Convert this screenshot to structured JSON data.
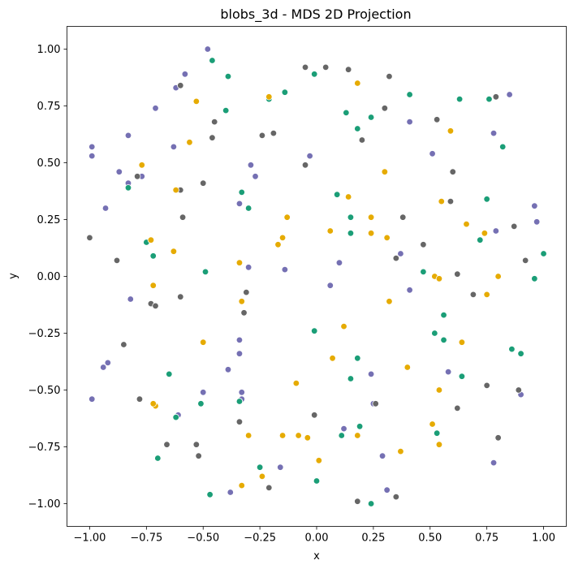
{
  "chart_data": {
    "type": "scatter",
    "title": "blobs_3d - MDS 2D Projection",
    "xlabel": "x",
    "ylabel": "y",
    "xlim": [
      -1.1,
      1.1
    ],
    "ylim": [
      -1.1,
      1.1
    ],
    "x_ticks": [
      -1.0,
      -0.75,
      -0.5,
      -0.25,
      0.0,
      0.25,
      0.5,
      0.75,
      1.0
    ],
    "x_tick_labels": [
      "−1.00",
      "−0.75",
      "−0.50",
      "−0.25",
      "0.00",
      "0.25",
      "0.50",
      "0.75",
      "1.00"
    ],
    "y_ticks": [
      -1.0,
      -0.75,
      -0.5,
      -0.25,
      0.0,
      0.25,
      0.5,
      0.75,
      1.0
    ],
    "y_tick_labels": [
      "−1.00",
      "−0.75",
      "−0.50",
      "−0.25",
      "0.00",
      "0.25",
      "0.50",
      "0.75",
      "1.00"
    ],
    "grid": false,
    "legend": "none",
    "colors": {
      "purple": "#7570b3",
      "green": "#1b9e77",
      "gray": "#666666",
      "orange": "#e6ab02"
    },
    "series": [
      {
        "color": "#7570b3",
        "points": [
          [
            -0.48,
            1.0
          ],
          [
            -0.58,
            0.89
          ],
          [
            -0.62,
            0.83
          ],
          [
            -0.71,
            0.74
          ],
          [
            -0.83,
            0.62
          ],
          [
            -0.63,
            0.57
          ],
          [
            -0.99,
            0.57
          ],
          [
            -0.99,
            0.53
          ],
          [
            -0.87,
            0.46
          ],
          [
            -0.77,
            0.44
          ],
          [
            -0.83,
            0.41
          ],
          [
            -0.93,
            0.3
          ],
          [
            -0.29,
            0.49
          ],
          [
            -0.27,
            0.44
          ],
          [
            -0.34,
            0.32
          ],
          [
            -0.82,
            -0.1
          ],
          [
            -0.3,
            0.04
          ],
          [
            -0.14,
            0.03
          ],
          [
            -0.34,
            -0.28
          ],
          [
            -0.34,
            -0.34
          ],
          [
            -0.39,
            -0.41
          ],
          [
            -0.33,
            -0.51
          ],
          [
            -0.33,
            -0.54
          ],
          [
            -0.5,
            -0.51
          ],
          [
            -0.61,
            -0.61
          ],
          [
            -0.92,
            -0.38
          ],
          [
            -0.94,
            -0.4
          ],
          [
            -0.99,
            -0.54
          ],
          [
            -0.38,
            -0.95
          ],
          [
            -0.16,
            -0.84
          ],
          [
            0.1,
            0.06
          ],
          [
            0.06,
            -0.04
          ],
          [
            0.19,
            -0.66
          ],
          [
            0.12,
            -0.67
          ],
          [
            0.25,
            -0.56
          ],
          [
            0.24,
            -0.43
          ],
          [
            0.29,
            -0.79
          ],
          [
            0.31,
            -0.94
          ],
          [
            0.37,
            0.1
          ],
          [
            0.41,
            -0.06
          ],
          [
            0.41,
            0.68
          ],
          [
            0.51,
            0.54
          ],
          [
            0.58,
            -0.42
          ],
          [
            0.78,
            0.63
          ],
          [
            0.85,
            0.8
          ],
          [
            0.79,
            0.2
          ],
          [
            0.96,
            0.31
          ],
          [
            0.97,
            0.24
          ],
          [
            0.9,
            -0.52
          ],
          [
            0.78,
            -0.82
          ],
          [
            -0.03,
            0.53
          ]
        ]
      },
      {
        "color": "#1b9e77",
        "points": [
          [
            -0.46,
            0.95
          ],
          [
            -0.39,
            0.88
          ],
          [
            -0.4,
            0.73
          ],
          [
            -0.14,
            0.81
          ],
          [
            -0.21,
            0.78
          ],
          [
            -0.01,
            0.89
          ],
          [
            0.13,
            0.72
          ],
          [
            0.18,
            0.65
          ],
          [
            0.24,
            0.7
          ],
          [
            0.41,
            0.8
          ],
          [
            0.63,
            0.78
          ],
          [
            0.76,
            0.78
          ],
          [
            0.82,
            0.57
          ],
          [
            0.72,
            0.16
          ],
          [
            0.75,
            0.34
          ],
          [
            0.96,
            -0.01
          ],
          [
            1.0,
            0.1
          ],
          [
            0.47,
            0.02
          ],
          [
            -0.83,
            0.39
          ],
          [
            -0.75,
            0.15
          ],
          [
            -0.72,
            0.09
          ],
          [
            -0.49,
            0.02
          ],
          [
            -0.33,
            0.37
          ],
          [
            -0.3,
            0.3
          ],
          [
            0.09,
            0.36
          ],
          [
            0.15,
            0.26
          ],
          [
            0.15,
            0.19
          ],
          [
            -0.01,
            -0.24
          ],
          [
            0.18,
            -0.36
          ],
          [
            0.15,
            -0.45
          ],
          [
            0.56,
            -0.17
          ],
          [
            0.52,
            -0.25
          ],
          [
            0.56,
            -0.28
          ],
          [
            0.64,
            -0.44
          ],
          [
            0.86,
            -0.32
          ],
          [
            0.9,
            -0.34
          ],
          [
            -0.65,
            -0.43
          ],
          [
            -0.51,
            -0.56
          ],
          [
            -0.62,
            -0.62
          ],
          [
            -0.34,
            -0.55
          ],
          [
            -0.7,
            -0.8
          ],
          [
            -0.25,
            -0.84
          ],
          [
            -0.47,
            -0.96
          ],
          [
            0.0,
            -0.9
          ],
          [
            0.24,
            -1.0
          ],
          [
            0.11,
            -0.7
          ],
          [
            0.19,
            -0.66
          ],
          [
            0.53,
            -0.69
          ]
        ]
      },
      {
        "color": "#666666",
        "points": [
          [
            -0.6,
            0.84
          ],
          [
            -0.45,
            0.68
          ],
          [
            -0.46,
            0.61
          ],
          [
            -0.24,
            0.62
          ],
          [
            -0.19,
            0.63
          ],
          [
            -0.05,
            0.92
          ],
          [
            0.04,
            0.92
          ],
          [
            0.14,
            0.91
          ],
          [
            0.32,
            0.88
          ],
          [
            0.3,
            0.74
          ],
          [
            0.2,
            0.6
          ],
          [
            0.79,
            0.79
          ],
          [
            -0.79,
            0.44
          ],
          [
            -0.6,
            0.38
          ],
          [
            -0.59,
            0.26
          ],
          [
            -0.5,
            0.41
          ],
          [
            -1.0,
            0.17
          ],
          [
            -0.88,
            0.07
          ],
          [
            -0.05,
            0.49
          ],
          [
            0.38,
            0.26
          ],
          [
            0.35,
            0.08
          ],
          [
            0.47,
            0.14
          ],
          [
            0.6,
            0.46
          ],
          [
            0.59,
            0.33
          ],
          [
            0.62,
            0.01
          ],
          [
            0.69,
            -0.08
          ],
          [
            0.87,
            0.22
          ],
          [
            0.92,
            0.07
          ],
          [
            0.53,
            0.69
          ],
          [
            -0.31,
            -0.07
          ],
          [
            -0.32,
            -0.16
          ],
          [
            -0.73,
            -0.12
          ],
          [
            -0.71,
            -0.13
          ],
          [
            -0.6,
            -0.09
          ],
          [
            -0.85,
            -0.3
          ],
          [
            -0.78,
            -0.54
          ],
          [
            -0.66,
            -0.74
          ],
          [
            -0.53,
            -0.74
          ],
          [
            -0.52,
            -0.79
          ],
          [
            -0.34,
            -0.64
          ],
          [
            -0.21,
            -0.93
          ],
          [
            -0.01,
            -0.61
          ],
          [
            0.26,
            -0.56
          ],
          [
            0.18,
            -0.99
          ],
          [
            0.35,
            -0.97
          ],
          [
            0.62,
            -0.58
          ],
          [
            0.75,
            -0.48
          ],
          [
            0.89,
            -0.5
          ],
          [
            0.8,
            -0.71
          ]
        ]
      },
      {
        "color": "#e6ab02",
        "points": [
          [
            -0.21,
            0.79
          ],
          [
            -0.53,
            0.77
          ],
          [
            -0.56,
            0.59
          ],
          [
            -0.77,
            0.49
          ],
          [
            0.18,
            0.85
          ],
          [
            0.59,
            0.64
          ],
          [
            0.3,
            0.46
          ],
          [
            -0.62,
            0.38
          ],
          [
            -0.73,
            0.16
          ],
          [
            -0.63,
            0.11
          ],
          [
            -0.15,
            0.17
          ],
          [
            -0.13,
            0.26
          ],
          [
            -0.17,
            0.14
          ],
          [
            0.14,
            0.35
          ],
          [
            0.06,
            0.2
          ],
          [
            0.24,
            0.26
          ],
          [
            0.24,
            0.19
          ],
          [
            0.31,
            0.17
          ],
          [
            0.55,
            0.33
          ],
          [
            0.66,
            0.23
          ],
          [
            0.74,
            0.19
          ],
          [
            0.8,
            0.0
          ],
          [
            0.52,
            0.0
          ],
          [
            0.54,
            -0.01
          ],
          [
            -0.34,
            0.06
          ],
          [
            -0.33,
            -0.11
          ],
          [
            -0.72,
            -0.04
          ],
          [
            -0.5,
            -0.29
          ],
          [
            0.32,
            -0.11
          ],
          [
            0.12,
            -0.22
          ],
          [
            0.07,
            -0.36
          ],
          [
            0.4,
            -0.4
          ],
          [
            0.64,
            -0.29
          ],
          [
            0.75,
            -0.08
          ],
          [
            -0.09,
            -0.47
          ],
          [
            -0.71,
            -0.57
          ],
          [
            -0.72,
            -0.56
          ],
          [
            -0.3,
            -0.7
          ],
          [
            -0.15,
            -0.7
          ],
          [
            -0.08,
            -0.7
          ],
          [
            -0.04,
            -0.71
          ],
          [
            0.01,
            -0.81
          ],
          [
            -0.24,
            -0.88
          ],
          [
            -0.33,
            -0.92
          ],
          [
            0.18,
            -0.7
          ],
          [
            0.37,
            -0.77
          ],
          [
            0.51,
            -0.65
          ],
          [
            0.54,
            -0.74
          ],
          [
            0.54,
            -0.5
          ]
        ]
      }
    ]
  }
}
